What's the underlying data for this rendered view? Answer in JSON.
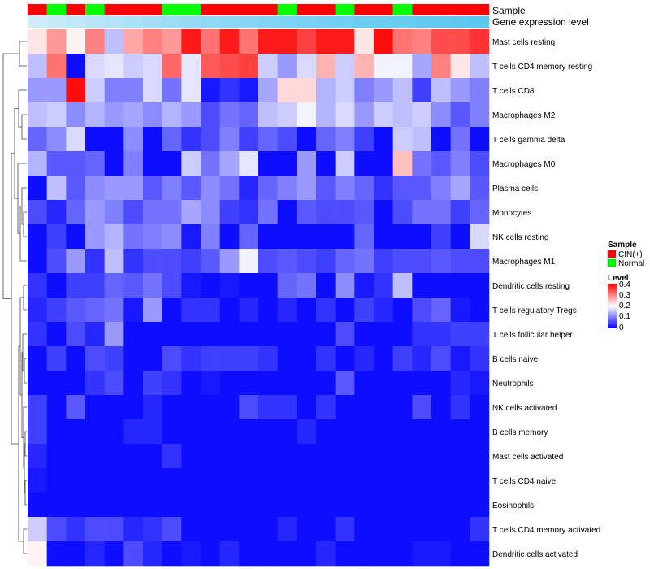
{
  "chart_data": {
    "type": "heatmap",
    "title": "",
    "annotation_labels": {
      "sample": "Sample",
      "expression": "Gene expression level"
    },
    "sample_groups": [
      "CIN",
      "Normal",
      "CIN",
      "Normal",
      "CIN",
      "CIN",
      "CIN",
      "Normal",
      "Normal",
      "CIN",
      "CIN",
      "CIN",
      "CIN",
      "Normal",
      "CIN",
      "CIN",
      "Normal",
      "CIN",
      "CIN",
      "Normal",
      "CIN",
      "CIN",
      "CIN",
      "CIN"
    ],
    "expression_level": [
      0.2,
      0.25,
      0.3,
      0.35,
      0.4,
      0.45,
      0.5,
      0.55,
      0.6,
      0.63,
      0.66,
      0.7,
      0.73,
      0.76,
      0.79,
      0.82,
      0.85,
      0.88,
      0.9,
      0.92,
      0.94,
      0.96,
      0.98,
      1.0
    ],
    "rows": [
      "Mast cells resting",
      "T cells CD4 memory resting",
      "T cells CD8",
      "Macrophages M2",
      "T cells gamma delta",
      "Macrophages M0",
      "Plasma cells",
      "Monocytes",
      "NK cells resting",
      "Macrophages M1",
      "Dendritic cells resting",
      "T cells regulatory  Tregs",
      "T cells follicular helper",
      "B cells naive",
      "Neutrophils",
      "NK cells activated",
      "B cells memory",
      "Mast cells activated",
      "T cells CD4 naive",
      "Eosinophils",
      "T cells CD4 memory activated",
      "Dendritic cells activated"
    ],
    "values": [
      [
        0.22,
        0.28,
        0.21,
        0.3,
        0.15,
        0.27,
        0.3,
        0.28,
        0.38,
        0.31,
        0.38,
        0.31,
        0.38,
        0.38,
        0.35,
        0.38,
        0.38,
        0.22,
        0.39,
        0.31,
        0.3,
        0.34,
        0.34,
        0.36
      ],
      [
        0.15,
        0.31,
        0.01,
        0.17,
        0.18,
        0.16,
        0.17,
        0.32,
        0.18,
        0.33,
        0.34,
        0.35,
        0.16,
        0.12,
        0.17,
        0.26,
        0.16,
        0.26,
        0.19,
        0.19,
        0.13,
        0.3,
        0.22,
        0.15
      ],
      [
        0.12,
        0.12,
        0.39,
        0.16,
        0.1,
        0.1,
        0.17,
        0.09,
        0.18,
        0.02,
        0.04,
        0.02,
        0.13,
        0.23,
        0.23,
        0.14,
        0.16,
        0.1,
        0.12,
        0.15,
        0.05,
        0.15,
        0.12,
        0.1
      ],
      [
        0.15,
        0.16,
        0.11,
        0.14,
        0.12,
        0.13,
        0.11,
        0.14,
        0.12,
        0.06,
        0.09,
        0.08,
        0.15,
        0.16,
        0.19,
        0.14,
        0.17,
        0.12,
        0.16,
        0.15,
        0.16,
        0.11,
        0.07,
        0.1
      ],
      [
        0.08,
        0.11,
        0.17,
        0.01,
        0.01,
        0.11,
        0.01,
        0.08,
        0.04,
        0.06,
        0.1,
        0.05,
        0.08,
        0.06,
        0.01,
        0.08,
        0.1,
        0.05,
        0.01,
        0.16,
        0.15,
        0.01,
        0.09,
        0.01
      ],
      [
        0.14,
        0.07,
        0.07,
        0.08,
        0.01,
        0.1,
        0.01,
        0.01,
        0.16,
        0.09,
        0.13,
        0.18,
        0.01,
        0.01,
        0.12,
        0.01,
        0.16,
        0.01,
        0.01,
        0.25,
        0.09,
        0.07,
        0.1,
        0.06
      ],
      [
        0.01,
        0.15,
        0.07,
        0.11,
        0.12,
        0.12,
        0.07,
        0.1,
        0.07,
        0.11,
        0.09,
        0.03,
        0.08,
        0.1,
        0.12,
        0.07,
        0.1,
        0.08,
        0.04,
        0.07,
        0.07,
        0.1,
        0.13,
        0.07
      ],
      [
        0.06,
        0.03,
        0.08,
        0.12,
        0.1,
        0.06,
        0.09,
        0.09,
        0.13,
        0.11,
        0.05,
        0.04,
        0.09,
        0.01,
        0.07,
        0.06,
        0.06,
        0.07,
        0.01,
        0.06,
        0.09,
        0.09,
        0.05,
        0.08
      ],
      [
        0.01,
        0.05,
        0.01,
        0.12,
        0.14,
        0.09,
        0.1,
        0.11,
        0.02,
        0.1,
        0.01,
        0.08,
        0.01,
        0.01,
        0.01,
        0.01,
        0.01,
        0.08,
        0.01,
        0.01,
        0.01,
        0.05,
        0.01,
        0.17
      ],
      [
        0.01,
        0.06,
        0.12,
        0.04,
        0.15,
        0.04,
        0.06,
        0.06,
        0.05,
        0.07,
        0.12,
        0.19,
        0.06,
        0.07,
        0.06,
        0.05,
        0.08,
        0.09,
        0.05,
        0.06,
        0.06,
        0.07,
        0.06,
        0.06
      ],
      [
        0.04,
        0.01,
        0.05,
        0.05,
        0.08,
        0.07,
        0.09,
        0.06,
        0.02,
        0.01,
        0.02,
        0.01,
        0.01,
        0.08,
        0.09,
        0.01,
        0.11,
        0.02,
        0.04,
        0.15,
        0.01,
        0.01,
        0.01,
        0.01
      ],
      [
        0.03,
        0.05,
        0.07,
        0.08,
        0.09,
        0.02,
        0.12,
        0.01,
        0.04,
        0.04,
        0.01,
        0.03,
        0.01,
        0.03,
        0.01,
        0.04,
        0.01,
        0.05,
        0.03,
        0.01,
        0.06,
        0.08,
        0.02,
        0.01
      ],
      [
        0.04,
        0.01,
        0.06,
        0.03,
        0.12,
        0.01,
        0.01,
        0.01,
        0.01,
        0.01,
        0.01,
        0.01,
        0.01,
        0.01,
        0.01,
        0.01,
        0.06,
        0.01,
        0.01,
        0.01,
        0.04,
        0.04,
        0.05,
        0.05
      ],
      [
        0.01,
        0.05,
        0.01,
        0.06,
        0.05,
        0.01,
        0.01,
        0.06,
        0.04,
        0.05,
        0.05,
        0.05,
        0.04,
        0.01,
        0.01,
        0.04,
        0.01,
        0.03,
        0.01,
        0.05,
        0.03,
        0.06,
        0.02,
        0.04
      ],
      [
        0.01,
        0.01,
        0.01,
        0.04,
        0.06,
        0.01,
        0.05,
        0.04,
        0.01,
        0.02,
        0.01,
        0.01,
        0.01,
        0.01,
        0.01,
        0.01,
        0.07,
        0.01,
        0.01,
        0.01,
        0.01,
        0.01,
        0.03,
        0.02
      ],
      [
        0.05,
        0.01,
        0.07,
        0.01,
        0.01,
        0.01,
        0.03,
        0.01,
        0.01,
        0.01,
        0.01,
        0.06,
        0.04,
        0.04,
        0.01,
        0.04,
        0.01,
        0.01,
        0.01,
        0.01,
        0.06,
        0.01,
        0.04,
        0.01
      ],
      [
        0.05,
        0.01,
        0.01,
        0.01,
        0.01,
        0.03,
        0.03,
        0.01,
        0.01,
        0.01,
        0.01,
        0.01,
        0.01,
        0.01,
        0.03,
        0.01,
        0.01,
        0.01,
        0.01,
        0.01,
        0.01,
        0.01,
        0.01,
        0.01
      ],
      [
        0.03,
        0.01,
        0.01,
        0.01,
        0.01,
        0.01,
        0.01,
        0.04,
        0.01,
        0.01,
        0.01,
        0.01,
        0.01,
        0.01,
        0.01,
        0.01,
        0.01,
        0.01,
        0.01,
        0.01,
        0.01,
        0.01,
        0.01,
        0.01
      ],
      [
        0.02,
        0.01,
        0.01,
        0.01,
        0.01,
        0.01,
        0.01,
        0.01,
        0.01,
        0.01,
        0.01,
        0.01,
        0.01,
        0.01,
        0.01,
        0.01,
        0.01,
        0.01,
        0.01,
        0.01,
        0.01,
        0.01,
        0.01,
        0.01
      ],
      [
        0.01,
        0.01,
        0.01,
        0.01,
        0.01,
        0.01,
        0.01,
        0.01,
        0.01,
        0.01,
        0.01,
        0.01,
        0.01,
        0.01,
        0.01,
        0.01,
        0.01,
        0.01,
        0.01,
        0.01,
        0.01,
        0.01,
        0.01,
        0.01
      ],
      [
        0.16,
        0.06,
        0.04,
        0.06,
        0.06,
        0.03,
        0.04,
        0.06,
        0.01,
        0.01,
        0.01,
        0.01,
        0.01,
        0.03,
        0.01,
        0.01,
        0.04,
        0.01,
        0.01,
        0.01,
        0.01,
        0.01,
        0.01,
        0.04
      ],
      [
        0.21,
        0.01,
        0.01,
        0.03,
        0.01,
        0.06,
        0.03,
        0.01,
        0.02,
        0.01,
        0.03,
        0.01,
        0.01,
        0.01,
        0.01,
        0.03,
        0.01,
        0.01,
        0.01,
        0.01,
        0.02,
        0.02,
        0.01,
        0.01
      ]
    ],
    "legend_sample": {
      "title": "Sample",
      "entries": [
        {
          "label": "CIN(+)",
          "color": "#ff0000"
        },
        {
          "label": "Normal",
          "color": "#00ff00"
        }
      ]
    },
    "legend_level": {
      "title": "Level",
      "ticks": [
        "0.4",
        "0.3",
        "0.2",
        "0.1",
        "0"
      ],
      "min": 0,
      "max": 0.4
    },
    "colors": {
      "low": "#0000ff",
      "mid": "#ffffff",
      "high": "#ff0000",
      "annotation_low": "#eaf6fc",
      "annotation_high": "#5ac8f0"
    }
  }
}
